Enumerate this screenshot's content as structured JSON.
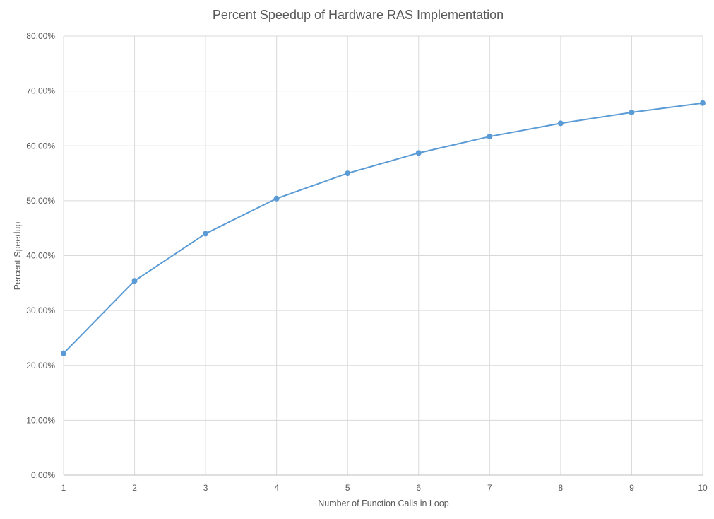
{
  "chart_data": {
    "type": "line",
    "title": "Percent Speedup of Hardware RAS Implementation",
    "xlabel": "Number of Function Calls in Loop",
    "ylabel": "Percent Speedup",
    "x": [
      1,
      2,
      3,
      4,
      5,
      6,
      7,
      8,
      9,
      10
    ],
    "x_tick_labels": [
      "1",
      "2",
      "3",
      "4",
      "5",
      "6",
      "7",
      "8",
      "9",
      "10"
    ],
    "series": [
      {
        "values": [
          22.2,
          35.4,
          44.0,
          50.4,
          55.0,
          58.7,
          61.7,
          64.1,
          66.1,
          67.8
        ]
      }
    ],
    "ylim": [
      0,
      80
    ],
    "y_ticks": [
      0,
      10,
      20,
      30,
      40,
      50,
      60,
      70,
      80
    ],
    "y_tick_labels": [
      "0.00%",
      "10.00%",
      "20.00%",
      "30.00%",
      "40.00%",
      "50.00%",
      "60.00%",
      "70.00%",
      "80.00%"
    ],
    "grid": true,
    "legend": "none",
    "colors": {
      "line": "#5b9bd5",
      "grid": "#d9d9d9",
      "axis": "#bfbfbf",
      "text": "#595959"
    }
  }
}
